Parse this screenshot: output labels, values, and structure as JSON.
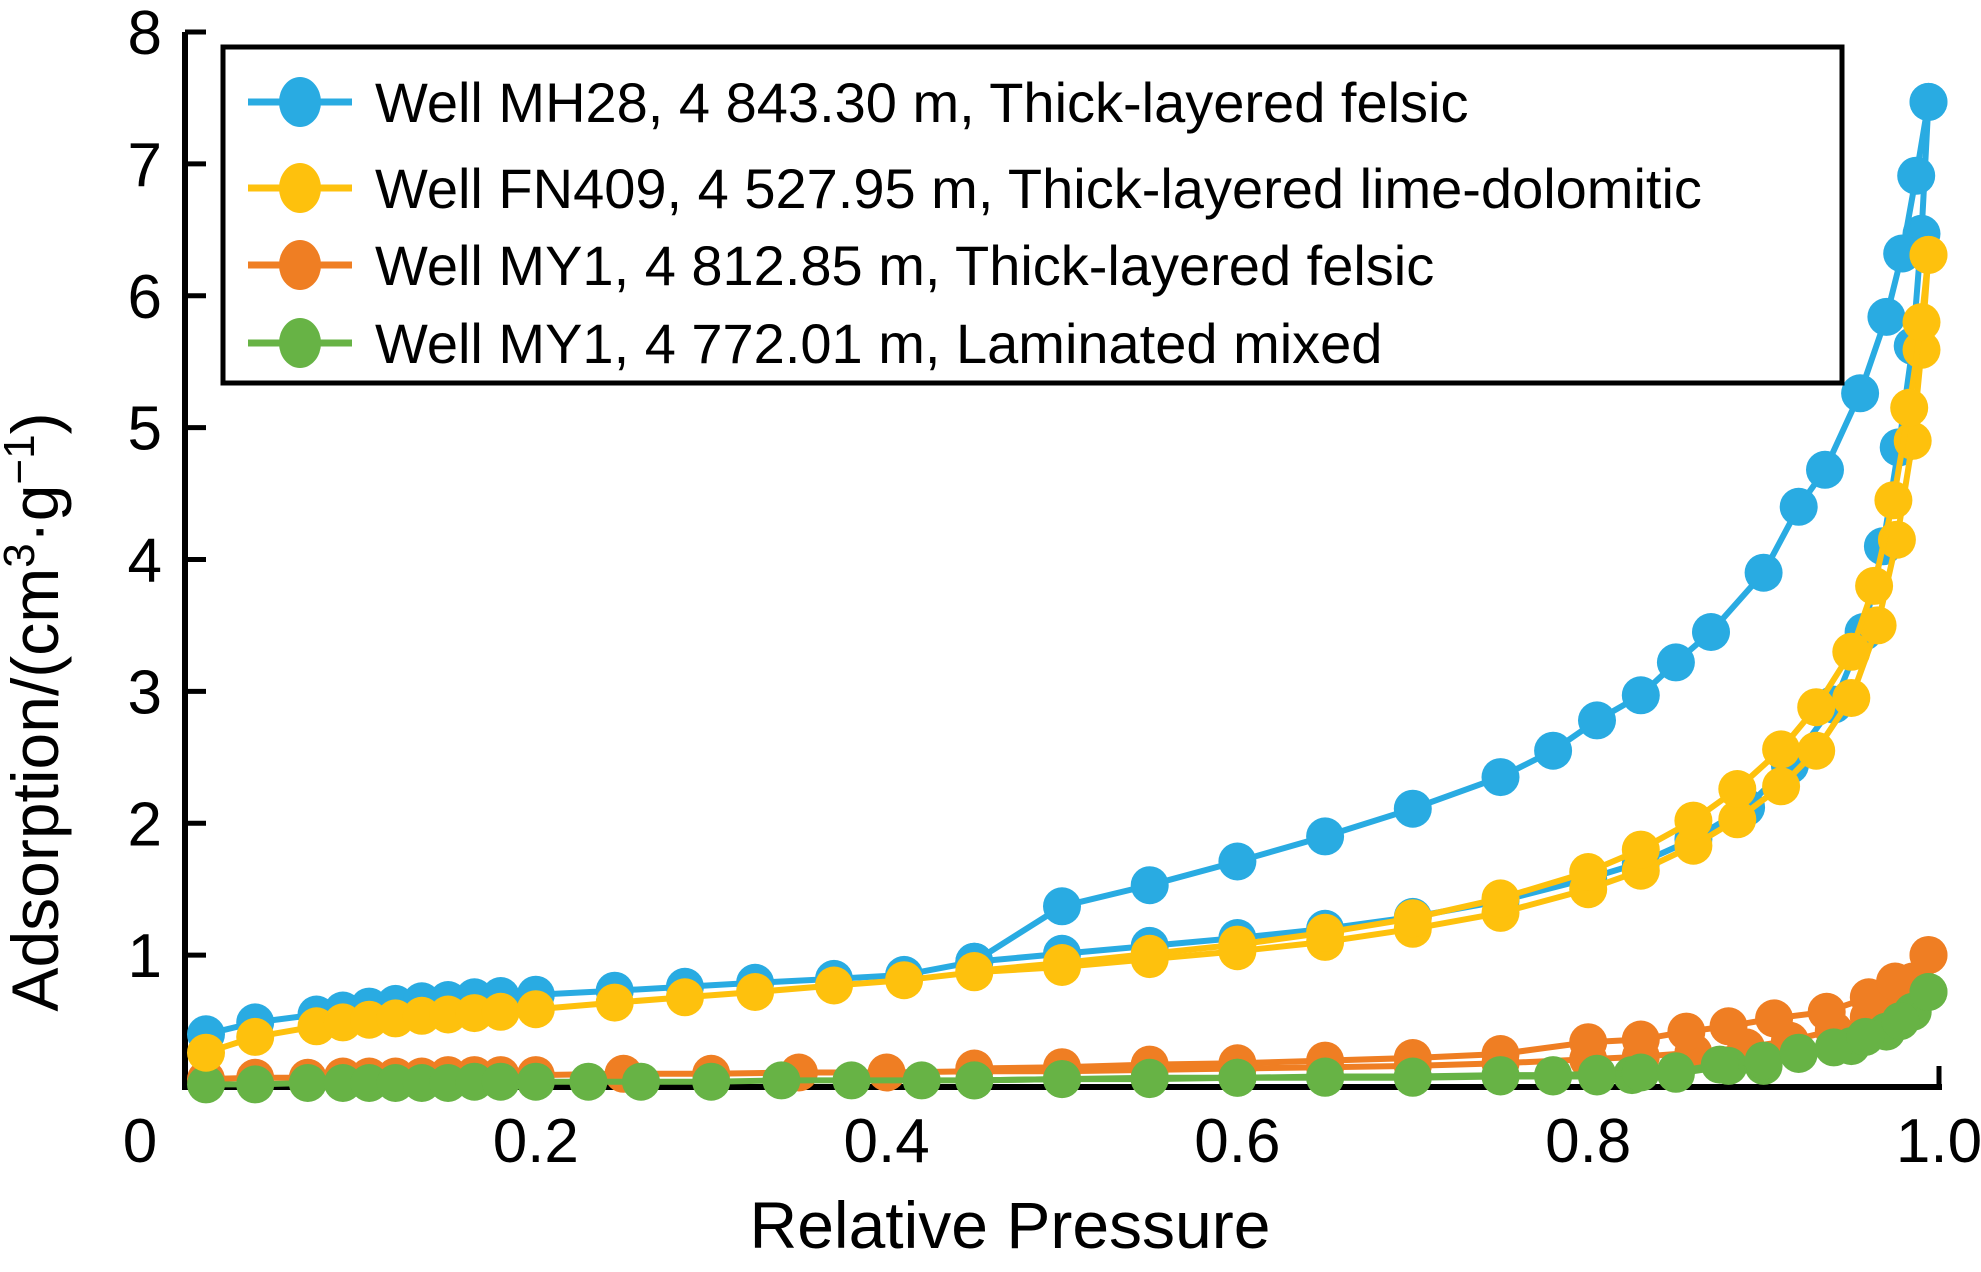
{
  "figure": {
    "background": "#ffffff",
    "text_color": "#000000",
    "axis_color": "#000000"
  },
  "chart_data": {
    "type": "line",
    "title": "",
    "xlabel": "Relative Pressure",
    "ylabel": "Adsorption/(cm³·g⁻¹)",
    "ylabel_parts": [
      {
        "text": "Adsorption/(cm",
        "sup": false
      },
      {
        "text": "3",
        "sup": true
      },
      {
        "text": "·g",
        "sup": false
      },
      {
        "text": "−1",
        "sup": true
      },
      {
        "text": ")",
        "sup": false
      }
    ],
    "xlim": [
      0,
      1.0
    ],
    "ylim": [
      0,
      8
    ],
    "xticks": [
      0,
      0.2,
      0.4,
      0.6,
      0.8,
      1.0
    ],
    "xtick_labels": [
      "0",
      "0.2",
      "0.4",
      "0.6",
      "0.8",
      "1.0"
    ],
    "origin_label": "0",
    "yticks": [
      1,
      2,
      3,
      4,
      5,
      6,
      7,
      8
    ],
    "ytick_labels": [
      "1",
      "2",
      "3",
      "4",
      "5",
      "6",
      "7",
      "8"
    ],
    "grid": false,
    "legend": {
      "position": "upper-left",
      "border": true
    },
    "marker": "circle",
    "draw_order": [
      2,
      3,
      0,
      1
    ],
    "series": [
      {
        "id": "well-mh28",
        "label": "Well MH28, 4 843.30 m, Thick-layered felsic",
        "color": "#29abe2",
        "adsorption": [
          [
            0.012,
            0.4
          ],
          [
            0.04,
            0.49
          ],
          [
            0.075,
            0.55
          ],
          [
            0.09,
            0.58
          ],
          [
            0.105,
            0.61
          ],
          [
            0.12,
            0.63
          ],
          [
            0.135,
            0.65
          ],
          [
            0.15,
            0.66
          ],
          [
            0.165,
            0.68
          ],
          [
            0.18,
            0.69
          ],
          [
            0.2,
            0.7
          ],
          [
            0.245,
            0.73
          ],
          [
            0.285,
            0.76
          ],
          [
            0.325,
            0.79
          ],
          [
            0.37,
            0.82
          ],
          [
            0.41,
            0.85
          ],
          [
            0.45,
            0.95
          ],
          [
            0.5,
            1.01
          ],
          [
            0.55,
            1.07
          ],
          [
            0.6,
            1.13
          ],
          [
            0.65,
            1.2
          ],
          [
            0.7,
            1.29
          ],
          [
            0.75,
            1.41
          ],
          [
            0.8,
            1.58
          ],
          [
            0.83,
            1.7
          ],
          [
            0.86,
            1.88
          ],
          [
            0.89,
            2.12
          ],
          [
            0.915,
            2.44
          ],
          [
            0.94,
            2.9
          ],
          [
            0.957,
            3.45
          ],
          [
            0.968,
            4.1
          ],
          [
            0.977,
            4.85
          ],
          [
            0.985,
            5.62
          ],
          [
            0.99,
            6.47
          ],
          [
            0.994,
            7.47
          ]
        ],
        "desorption": [
          [
            0.45,
            0.95
          ],
          [
            0.5,
            1.37
          ],
          [
            0.55,
            1.53
          ],
          [
            0.6,
            1.71
          ],
          [
            0.65,
            1.9
          ],
          [
            0.7,
            2.11
          ],
          [
            0.75,
            2.35
          ],
          [
            0.78,
            2.55
          ],
          [
            0.805,
            2.78
          ],
          [
            0.83,
            2.97
          ],
          [
            0.85,
            3.22
          ],
          [
            0.87,
            3.45
          ],
          [
            0.9,
            3.9
          ],
          [
            0.92,
            4.4
          ],
          [
            0.935,
            4.68
          ],
          [
            0.955,
            5.26
          ],
          [
            0.97,
            5.84
          ],
          [
            0.979,
            6.32
          ],
          [
            0.987,
            6.91
          ],
          [
            0.994,
            7.47
          ]
        ]
      },
      {
        "id": "well-fn409",
        "label": "Well FN409, 4 527.95 m, Thick-layered lime-dolomitic",
        "color": "#fec10d",
        "adsorption": [
          [
            0.012,
            0.26
          ],
          [
            0.04,
            0.38
          ],
          [
            0.075,
            0.46
          ],
          [
            0.09,
            0.49
          ],
          [
            0.105,
            0.51
          ],
          [
            0.12,
            0.52
          ],
          [
            0.135,
            0.54
          ],
          [
            0.15,
            0.55
          ],
          [
            0.165,
            0.56
          ],
          [
            0.18,
            0.57
          ],
          [
            0.2,
            0.59
          ],
          [
            0.245,
            0.64
          ],
          [
            0.285,
            0.68
          ],
          [
            0.325,
            0.72
          ],
          [
            0.37,
            0.77
          ],
          [
            0.41,
            0.81
          ],
          [
            0.45,
            0.87
          ],
          [
            0.5,
            0.91
          ],
          [
            0.55,
            0.97
          ],
          [
            0.6,
            1.03
          ],
          [
            0.65,
            1.1
          ],
          [
            0.7,
            1.2
          ],
          [
            0.75,
            1.32
          ],
          [
            0.8,
            1.5
          ],
          [
            0.83,
            1.64
          ],
          [
            0.86,
            1.83
          ],
          [
            0.885,
            2.03
          ],
          [
            0.91,
            2.28
          ],
          [
            0.93,
            2.55
          ],
          [
            0.95,
            2.95
          ],
          [
            0.965,
            3.5
          ],
          [
            0.976,
            4.15
          ],
          [
            0.985,
            4.9
          ],
          [
            0.99,
            5.59
          ],
          [
            0.994,
            6.31
          ]
        ],
        "desorption": [
          [
            0.45,
            0.88
          ],
          [
            0.5,
            0.94
          ],
          [
            0.55,
            1.01
          ],
          [
            0.6,
            1.08
          ],
          [
            0.65,
            1.17
          ],
          [
            0.7,
            1.28
          ],
          [
            0.75,
            1.43
          ],
          [
            0.8,
            1.63
          ],
          [
            0.83,
            1.8
          ],
          [
            0.86,
            2.02
          ],
          [
            0.885,
            2.26
          ],
          [
            0.91,
            2.56
          ],
          [
            0.93,
            2.88
          ],
          [
            0.95,
            3.3
          ],
          [
            0.963,
            3.8
          ],
          [
            0.974,
            4.45
          ],
          [
            0.983,
            5.15
          ],
          [
            0.99,
            5.8
          ],
          [
            0.994,
            6.31
          ]
        ]
      },
      {
        "id": "well-my1-4812",
        "label": "Well MY1, 4 812.85 m, Thick-layered felsic",
        "color": "#ef7e23",
        "adsorption": [
          [
            0.012,
            0.06
          ],
          [
            0.04,
            0.07
          ],
          [
            0.07,
            0.07
          ],
          [
            0.09,
            0.08
          ],
          [
            0.105,
            0.08
          ],
          [
            0.12,
            0.08
          ],
          [
            0.135,
            0.08
          ],
          [
            0.15,
            0.09
          ],
          [
            0.165,
            0.09
          ],
          [
            0.18,
            0.09
          ],
          [
            0.2,
            0.09
          ],
          [
            0.25,
            0.1
          ],
          [
            0.3,
            0.1
          ],
          [
            0.35,
            0.11
          ],
          [
            0.4,
            0.11
          ],
          [
            0.45,
            0.12
          ],
          [
            0.5,
            0.12
          ],
          [
            0.55,
            0.13
          ],
          [
            0.6,
            0.14
          ],
          [
            0.65,
            0.15
          ],
          [
            0.7,
            0.16
          ],
          [
            0.75,
            0.18
          ],
          [
            0.8,
            0.21
          ],
          [
            0.83,
            0.23
          ],
          [
            0.86,
            0.26
          ],
          [
            0.89,
            0.3
          ],
          [
            0.915,
            0.35
          ],
          [
            0.94,
            0.43
          ],
          [
            0.96,
            0.53
          ],
          [
            0.975,
            0.66
          ],
          [
            0.985,
            0.8
          ],
          [
            0.994,
            1.0
          ]
        ],
        "desorption": [
          [
            0.45,
            0.14
          ],
          [
            0.5,
            0.15
          ],
          [
            0.55,
            0.17
          ],
          [
            0.6,
            0.18
          ],
          [
            0.65,
            0.2
          ],
          [
            0.7,
            0.22
          ],
          [
            0.75,
            0.25
          ],
          [
            0.8,
            0.34
          ],
          [
            0.83,
            0.36
          ],
          [
            0.856,
            0.42
          ],
          [
            0.88,
            0.46
          ],
          [
            0.906,
            0.52
          ],
          [
            0.936,
            0.57
          ],
          [
            0.96,
            0.68
          ],
          [
            0.975,
            0.8
          ],
          [
            0.994,
            1.0
          ]
        ]
      },
      {
        "id": "well-my1-4772",
        "label": "Well MY1, 4 772.01 m, Laminated mixed",
        "color": "#67b345",
        "adsorption": [
          [
            0.012,
            0.02
          ],
          [
            0.04,
            0.02
          ],
          [
            0.07,
            0.03
          ],
          [
            0.09,
            0.03
          ],
          [
            0.105,
            0.03
          ],
          [
            0.12,
            0.03
          ],
          [
            0.135,
            0.03
          ],
          [
            0.15,
            0.03
          ],
          [
            0.165,
            0.04
          ],
          [
            0.18,
            0.04
          ],
          [
            0.2,
            0.04
          ],
          [
            0.23,
            0.04
          ],
          [
            0.26,
            0.04
          ],
          [
            0.3,
            0.04
          ],
          [
            0.34,
            0.05
          ],
          [
            0.38,
            0.05
          ],
          [
            0.42,
            0.05
          ],
          [
            0.45,
            0.05
          ],
          [
            0.5,
            0.06
          ],
          [
            0.55,
            0.06
          ],
          [
            0.6,
            0.07
          ],
          [
            0.65,
            0.07
          ],
          [
            0.7,
            0.07
          ],
          [
            0.75,
            0.08
          ],
          [
            0.78,
            0.08
          ],
          [
            0.805,
            0.08
          ],
          [
            0.825,
            0.09
          ],
          [
            0.85,
            0.1
          ],
          [
            0.88,
            0.16
          ],
          [
            0.9,
            0.16
          ],
          [
            0.92,
            0.25
          ],
          [
            0.95,
            0.31
          ],
          [
            0.97,
            0.42
          ],
          [
            0.985,
            0.57
          ],
          [
            0.994,
            0.72
          ]
        ],
        "desorption": [
          [
            0.45,
            0.05
          ],
          [
            0.5,
            0.06
          ],
          [
            0.55,
            0.07
          ],
          [
            0.6,
            0.07
          ],
          [
            0.65,
            0.08
          ],
          [
            0.7,
            0.08
          ],
          [
            0.75,
            0.09
          ],
          [
            0.78,
            0.09
          ],
          [
            0.805,
            0.1
          ],
          [
            0.83,
            0.11
          ],
          [
            0.85,
            0.12
          ],
          [
            0.875,
            0.17
          ],
          [
            0.9,
            0.2
          ],
          [
            0.92,
            0.26
          ],
          [
            0.94,
            0.3
          ],
          [
            0.958,
            0.38
          ],
          [
            0.978,
            0.5
          ],
          [
            0.994,
            0.72
          ]
        ]
      }
    ]
  }
}
